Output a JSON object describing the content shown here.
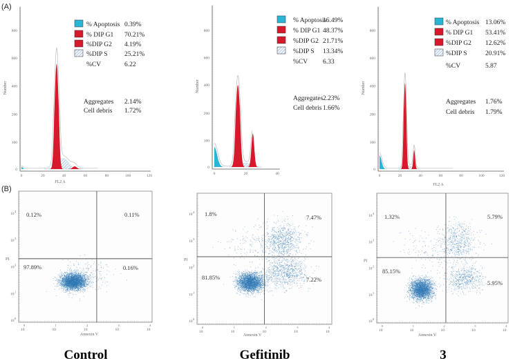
{
  "panel_labels": {
    "a": "(A)",
    "b": "(B)"
  },
  "column_titles": [
    "Control",
    "Gefitinib",
    "3"
  ],
  "colors": {
    "apoptosis": "#29b6d6",
    "dip": "#d8182b",
    "scatter": "#2f78b5",
    "axis": "#555555"
  },
  "chart_data": [
    {
      "type": "area",
      "name": "cell-cycle-control",
      "xlabel": "FL2 A",
      "ylabel": "Number",
      "x_ticks": [
        0,
        20,
        40,
        60,
        80,
        100,
        120
      ],
      "y_ticks": [
        0,
        100,
        200,
        400,
        600,
        800
      ],
      "xlim": [
        0,
        120
      ],
      "legend": [
        {
          "label": "% Apoptosis",
          "value": "0.39%",
          "swatch": "apoptosis"
        },
        {
          "label": "% DIP G1",
          "value": "70.21%",
          "swatch": "dip"
        },
        {
          "label": "%DIP G2",
          "value": "4.19%",
          "swatch": "dip"
        },
        {
          "label": "%DIP S",
          "value": "25.21%",
          "swatch": "hatch"
        },
        {
          "label": "%CV",
          "value": "6.22",
          "swatch": "none"
        }
      ],
      "extra": [
        {
          "label": "Aggregates",
          "value": "2.14%"
        },
        {
          "label": "Cell debris",
          "value": "1.72%"
        }
      ],
      "peaks": {
        "apoptosis": [
          0,
          8,
          1.2
        ],
        "g1": [
          33,
          560,
          1.6
        ],
        "s": [
          39,
          40,
          5
        ],
        "g2": [
          50,
          10,
          2
        ]
      }
    },
    {
      "type": "area",
      "name": "cell-cycle-gefitinib",
      "xlabel": "",
      "ylabel": "Number",
      "x_ticks": [
        0,
        20,
        40
      ],
      "y_ticks": [
        0,
        100,
        200,
        400,
        600,
        800
      ],
      "xlim": [
        0,
        40
      ],
      "legend": [
        {
          "label": "% Apoptosis",
          "value": "16.49%",
          "swatch": "apoptosis"
        },
        {
          "label": "% DIP G1",
          "value": "48.37%",
          "swatch": "dip"
        },
        {
          "label": "%DIP G2",
          "value": "21.71%",
          "swatch": "dip"
        },
        {
          "label": "%DIP S",
          "value": "13.34%",
          "swatch": "hatch"
        },
        {
          "label": "%CV",
          "value": "6.33",
          "swatch": "none"
        }
      ],
      "extra": [
        {
          "label": "Aggregates",
          "value": "2.23%"
        },
        {
          "label": "Cell debris",
          "value": "1.66%"
        }
      ],
      "peaks": {
        "apoptosis": [
          0,
          75,
          1.8
        ],
        "g1": [
          15,
          400,
          1.2
        ],
        "s": [
          20,
          15,
          3
        ],
        "g2": [
          24.5,
          125,
          0.9
        ]
      }
    },
    {
      "type": "area",
      "name": "cell-cycle-compound-3",
      "xlabel": "FL2 A",
      "ylabel": "Number",
      "x_ticks": [
        0,
        20,
        40,
        60,
        80,
        100,
        120
      ],
      "y_ticks": [
        0,
        100,
        200,
        400,
        600,
        800
      ],
      "xlim": [
        0,
        120
      ],
      "legend": [
        {
          "label": "% Apoptosis",
          "value": "13.06%",
          "swatch": "apoptosis"
        },
        {
          "label": "% DIP G1",
          "value": "53.41%",
          "swatch": "dip"
        },
        {
          "label": "%DIP G2",
          "value": "12.62%",
          "swatch": "dip"
        },
        {
          "label": "%DIP S",
          "value": "20.91%",
          "swatch": "hatch"
        },
        {
          "label": "%CV",
          "value": "5.87",
          "swatch": "none"
        }
      ],
      "extra": [
        {
          "label": "Aggregates",
          "value": "1.76%"
        },
        {
          "label": "Cell debris",
          "value": "1.79%"
        }
      ],
      "peaks": {
        "apoptosis": [
          0,
          50,
          2
        ],
        "g1": [
          25,
          420,
          1.1
        ],
        "s": [
          29,
          12,
          3
        ],
        "g2": [
          34,
          70,
          0.9
        ]
      }
    },
    {
      "type": "scatter",
      "name": "annexin-control",
      "xlabel": "Annexin V",
      "ylabel": "PI",
      "scale": "log",
      "xlim": [
        0,
        4
      ],
      "ylim": [
        0,
        4
      ],
      "quadrants": {
        "upper_left": "0.12%",
        "upper_right": "0.11%",
        "lower_left": "97.89%",
        "lower_right": "0.16%"
      },
      "gate_log": [
        2.35,
        2.3
      ],
      "clusters": [
        [
          1.6,
          1.45,
          0.2,
          0.15,
          3000
        ],
        [
          2.1,
          1.8,
          0.35,
          0.3,
          150
        ]
      ]
    },
    {
      "type": "scatter",
      "name": "annexin-gefitinib",
      "xlabel": "Annexin V",
      "ylabel": "PI",
      "scale": "log",
      "xlim": [
        0,
        4
      ],
      "ylim": [
        0,
        4
      ],
      "quadrants": {
        "upper_left": "1.8%",
        "upper_right": "7.47%",
        "lower_left": "81.85%",
        "lower_right": "7.22%"
      },
      "gate_log": [
        2.0,
        2.4
      ],
      "clusters": [
        [
          1.55,
          1.45,
          0.2,
          0.17,
          2600
        ],
        [
          2.55,
          3.0,
          0.3,
          0.35,
          700
        ],
        [
          2.65,
          1.8,
          0.35,
          0.28,
          700
        ],
        [
          1.7,
          2.8,
          0.5,
          0.35,
          150
        ]
      ]
    },
    {
      "type": "scatter",
      "name": "annexin-compound-3",
      "xlabel": "Annexin V",
      "ylabel": "PI",
      "scale": "log",
      "xlim": [
        0,
        4
      ],
      "ylim": [
        0,
        4
      ],
      "quadrants": {
        "upper_left": "1.32%",
        "upper_right": "5.79%",
        "lower_left": "85.15%",
        "lower_right": "5.95%"
      },
      "gate_log": [
        2.1,
        2.4
      ],
      "clusters": [
        [
          1.3,
          1.2,
          0.18,
          0.2,
          2400
        ],
        [
          2.5,
          3.0,
          0.3,
          0.35,
          500
        ],
        [
          2.7,
          1.6,
          0.3,
          0.25,
          500
        ],
        [
          1.6,
          2.7,
          0.5,
          0.4,
          120
        ]
      ]
    }
  ]
}
